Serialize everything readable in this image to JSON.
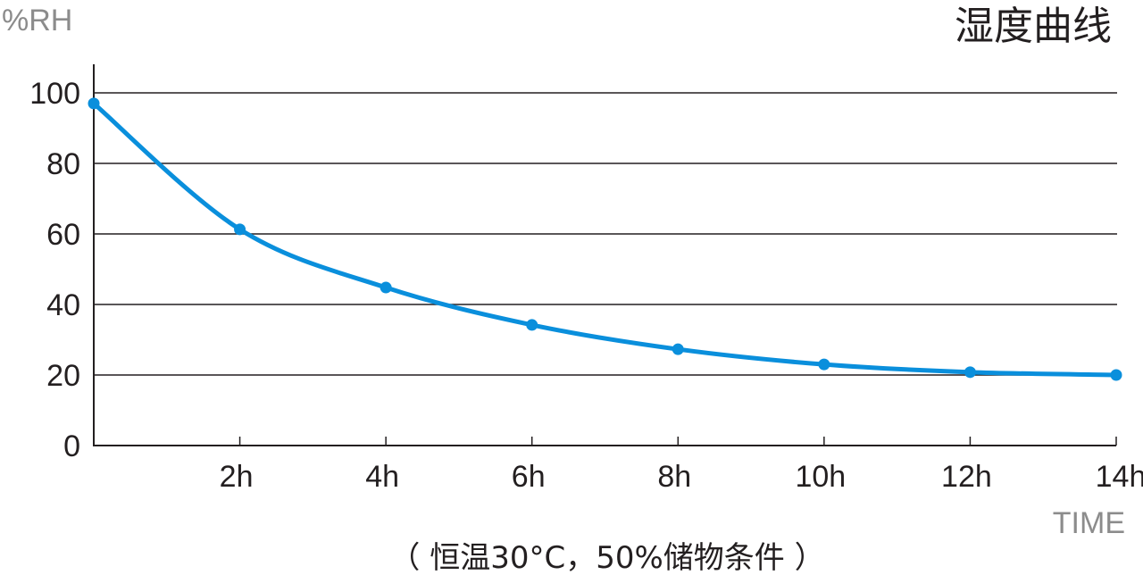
{
  "chart_data": {
    "type": "line",
    "title": "湿度曲线",
    "ylabel": "%RH",
    "xlabel": "TIME",
    "subtitle": "（ 恒温30°C，50%储物条件 ）",
    "x": [
      0,
      2,
      4,
      6,
      8,
      10,
      12,
      14
    ],
    "x_tick_labels": [
      "2h",
      "4h",
      "6h",
      "8h",
      "10h",
      "12h",
      "14h"
    ],
    "y_ticks": [
      0,
      20,
      40,
      60,
      80,
      100
    ],
    "xlim": [
      0,
      14
    ],
    "ylim": [
      0,
      100
    ],
    "grid": true,
    "series": [
      {
        "name": "湿度",
        "color": "#0a8fdc",
        "values": [
          97,
          61.3,
          44.8,
          34.2,
          27.3,
          23.0,
          20.8,
          20.0
        ]
      }
    ]
  }
}
